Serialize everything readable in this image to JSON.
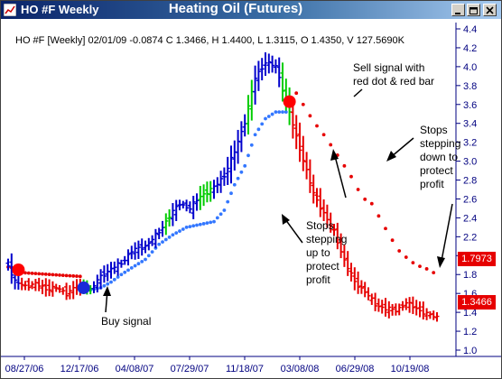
{
  "window": {
    "title": "HO #F Weekly",
    "chart_title": "Heating Oil (Futures)",
    "info_line": "HO #F [Weekly] 02/01/09  -0.0874 C 1.3466, H 1.4400, L 1.3115, O 1.4350, V 127.5690K"
  },
  "price_tags": {
    "stop": "1.7973",
    "close": "1.3466"
  },
  "annotations": {
    "buy": "Buy signal",
    "sell": [
      "Sell signal with",
      "red dot & red bar"
    ],
    "stops_up": [
      "Stops",
      "stepping",
      "up to",
      "protect",
      "profit"
    ],
    "stops_down": [
      "Stops",
      "stepping",
      "down to",
      "protect",
      "profit"
    ]
  },
  "colors": {
    "up": "#0000cc",
    "neutral": "#00cc00",
    "down": "#e60000",
    "stop_up": "#3377ff",
    "stop_down": "#e60000",
    "axis": "#000080"
  },
  "icons": [
    "chart-icon",
    "minimize-icon",
    "maximize-icon",
    "close-icon"
  ],
  "chart_data": {
    "type": "bar",
    "title": "Heating Oil (Futures)",
    "x_tick_labels": [
      "08/27/06",
      "12/17/06",
      "04/08/07",
      "07/29/07",
      "11/18/07",
      "03/08/08",
      "06/29/08",
      "10/19/08"
    ],
    "y_ticks": [
      1,
      1.2,
      1.4,
      1.6,
      1.8,
      2,
      2.2,
      2.4,
      2.6,
      2.8,
      3,
      3.2,
      3.4,
      3.6,
      3.8,
      4,
      4.2,
      4.4
    ],
    "ylim": [
      1.0,
      4.4
    ],
    "last": {
      "open": 1.435,
      "high": 1.44,
      "low": 1.3115,
      "close": 1.3466,
      "change": -0.0874,
      "volume": "127.5690K",
      "date": "02/01/09"
    },
    "stop_level": 1.7973,
    "series": [
      {
        "name": "price_path",
        "x": [
          0,
          2,
          5,
          8,
          11,
          14,
          17,
          20,
          24,
          27,
          30,
          33,
          36,
          40,
          44,
          47,
          50,
          53,
          56,
          60,
          63,
          66,
          69,
          72,
          75,
          78,
          81,
          84,
          87,
          89,
          92,
          95,
          98,
          101,
          104,
          107,
          110,
          113,
          116,
          119,
          122,
          125
        ],
        "values": [
          1.9,
          1.72,
          1.68,
          1.7,
          1.65,
          1.66,
          1.6,
          1.68,
          1.64,
          1.78,
          1.86,
          1.92,
          2.05,
          2.1,
          2.25,
          2.42,
          2.55,
          2.5,
          2.63,
          2.72,
          2.85,
          3.1,
          3.42,
          3.88,
          4.05,
          4.0,
          3.65,
          3.25,
          2.9,
          2.65,
          2.45,
          2.25,
          1.95,
          1.72,
          1.62,
          1.48,
          1.44,
          1.42,
          1.5,
          1.44,
          1.38,
          1.35
        ]
      },
      {
        "name": "signal_regimes",
        "values": [
          {
            "from": 0,
            "to": 3,
            "state": "up"
          },
          {
            "from": 4,
            "to": 21,
            "state": "down"
          },
          {
            "from": 22,
            "to": 24,
            "state": "neutral"
          },
          {
            "from": 25,
            "to": 45,
            "state": "up"
          },
          {
            "from": 46,
            "to": 47,
            "state": "neutral"
          },
          {
            "from": 48,
            "to": 55,
            "state": "up"
          },
          {
            "from": 56,
            "to": 59,
            "state": "neutral"
          },
          {
            "from": 60,
            "to": 69,
            "state": "up"
          },
          {
            "from": 70,
            "to": 71,
            "state": "neutral"
          },
          {
            "from": 72,
            "to": 79,
            "state": "up"
          },
          {
            "from": 80,
            "to": 82,
            "state": "neutral"
          },
          {
            "from": 83,
            "to": 125,
            "state": "down"
          }
        ]
      },
      {
        "name": "trailing_stop",
        "values": [
          {
            "from": 0,
            "to": 21,
            "side": "above",
            "levels": [
              [
                0,
                1.88
              ],
              [
                3,
                1.86
              ],
              [
                4,
                1.82
              ],
              [
                21,
                1.78
              ]
            ]
          },
          {
            "from": 22,
            "to": 81,
            "side": "below",
            "levels": [
              [
                22,
                1.62
              ],
              [
                27,
                1.66
              ],
              [
                30,
                1.72
              ],
              [
                33,
                1.8
              ],
              [
                36,
                1.87
              ],
              [
                40,
                1.96
              ],
              [
                44,
                2.12
              ],
              [
                48,
                2.22
              ],
              [
                52,
                2.3
              ],
              [
                60,
                2.36
              ],
              [
                63,
                2.48
              ],
              [
                66,
                2.75
              ],
              [
                69,
                2.95
              ],
              [
                72,
                3.28
              ],
              [
                75,
                3.45
              ],
              [
                78,
                3.52
              ],
              [
                81,
                3.52
              ]
            ]
          },
          {
            "from": 83,
            "to": 125,
            "side": "above",
            "levels": [
              [
                83,
                3.78
              ],
              [
                86,
                3.6
              ],
              [
                89,
                3.42
              ],
              [
                92,
                3.28
              ],
              [
                95,
                3.12
              ],
              [
                98,
                2.95
              ],
              [
                101,
                2.78
              ],
              [
                103,
                2.62
              ],
              [
                106,
                2.55
              ],
              [
                108,
                2.42
              ],
              [
                111,
                2.22
              ],
              [
                114,
                2.05
              ],
              [
                117,
                1.95
              ],
              [
                119,
                1.9
              ],
              [
                122,
                1.86
              ],
              [
                125,
                1.8
              ]
            ]
          }
        ]
      }
    ],
    "signals": [
      {
        "type": "sell",
        "bar": 3,
        "price": 1.85
      },
      {
        "type": "buy",
        "bar": 22,
        "price": 1.66
      },
      {
        "type": "sell",
        "bar": 82,
        "price": 3.63
      }
    ]
  }
}
